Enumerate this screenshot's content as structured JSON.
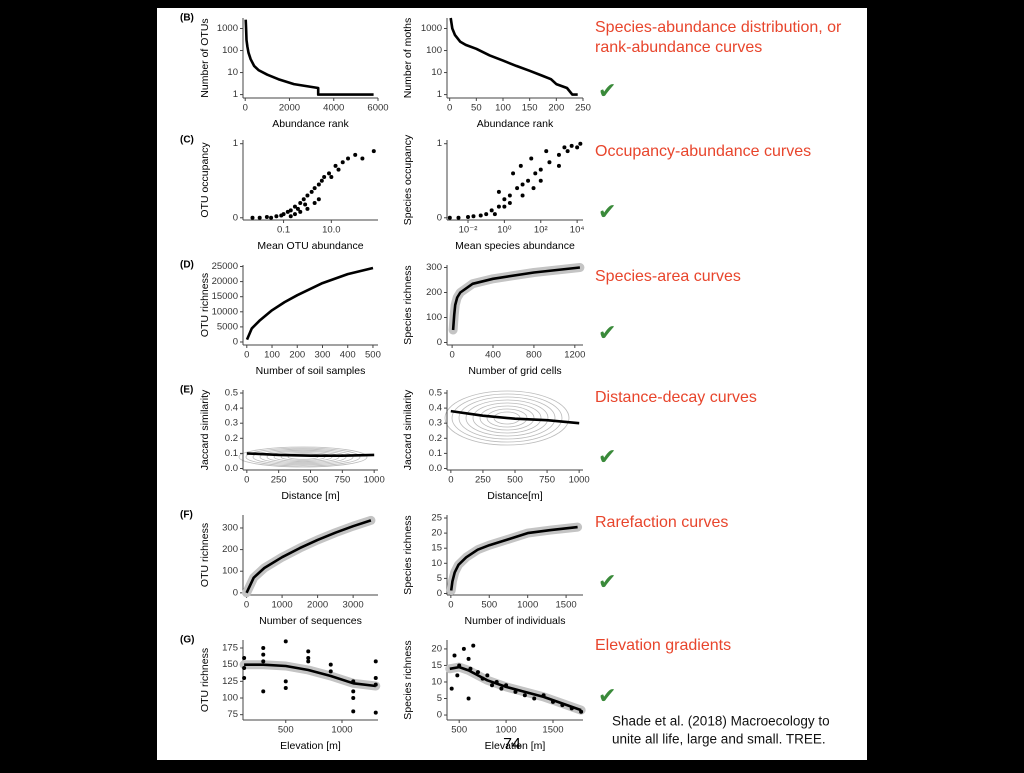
{
  "chart_data": [
    {
      "type": "line",
      "panel": "(B)",
      "x_label": "Abundance rank",
      "y_label": "Number of OTUs",
      "ylog": true,
      "color": "#000000",
      "xlim": [
        -100,
        6000
      ],
      "xticks": [
        0,
        2000,
        4000,
        6000
      ],
      "ylim": [
        0.7,
        3000
      ],
      "yticks": [
        1,
        10,
        100,
        1000
      ],
      "x": [
        20,
        40,
        60,
        100,
        150,
        250,
        400,
        600,
        1000,
        1500,
        2200,
        3300,
        3300,
        5800
      ],
      "values": [
        2500,
        1000,
        300,
        150,
        80,
        40,
        20,
        13,
        8,
        5,
        3,
        2,
        1,
        1
      ]
    },
    {
      "type": "line",
      "x_label": "Abundance rank",
      "y_label": "Number of moths",
      "ylog": true,
      "color": "#000000",
      "xlim": [
        -5,
        250
      ],
      "xticks": [
        0,
        50,
        100,
        150,
        200,
        250
      ],
      "ylim": [
        0.7,
        3000
      ],
      "yticks": [
        1,
        10,
        100,
        1000
      ],
      "x": [
        2,
        5,
        10,
        20,
        30,
        50,
        75,
        100,
        125,
        150,
        175,
        190,
        200,
        220,
        230,
        240
      ],
      "values": [
        3000,
        1000,
        500,
        250,
        180,
        120,
        60,
        35,
        20,
        12,
        7,
        5,
        3,
        2,
        1,
        1
      ]
    },
    {
      "type": "scatter",
      "panel": "(C)",
      "x_label": "Mean OTU abundance",
      "y_label": "OTU occupancy",
      "xlog": true,
      "color": "#000000",
      "xlim": [
        0.002,
        900
      ],
      "xticks": [
        0.1,
        {
          "value": 10,
          "label": "10.0"
        }
      ],
      "ylim": [
        -0.03,
        1.05
      ],
      "yticks": [
        0,
        1
      ],
      "x": [
        0.005,
        0.01,
        0.02,
        0.03,
        0.05,
        0.08,
        0.1,
        0.15,
        0.2,
        0.3,
        0.4,
        0.5,
        0.7,
        1,
        1.5,
        2,
        3,
        4,
        5,
        8,
        10,
        15,
        20,
        30,
        50,
        100,
        200,
        600,
        0.3,
        0.5,
        1,
        2,
        3,
        0.2,
        0.8
      ],
      "values": [
        0,
        0,
        0.01,
        0,
        0.02,
        0.03,
        0.05,
        0.08,
        0.1,
        0.15,
        0.12,
        0.2,
        0.25,
        0.3,
        0.35,
        0.4,
        0.45,
        0.5,
        0.55,
        0.6,
        0.55,
        0.7,
        0.65,
        0.75,
        0.8,
        0.85,
        0.8,
        0.9,
        0.05,
        0.08,
        0.12,
        0.2,
        0.25,
        0.02,
        0.18
      ]
    },
    {
      "type": "scatter",
      "x_label": "Mean species abundance",
      "y_label": "Species occupancy",
      "xlog": true,
      "color": "#000000",
      "xlim": [
        0.0007,
        21000
      ],
      "xticks": [
        {
          "value": 0.01,
          "label": "10⁻²"
        },
        {
          "value": 1,
          "label": "10⁰"
        },
        {
          "value": 100,
          "label": "10²"
        },
        {
          "value": 10000,
          "label": "10⁴"
        }
      ],
      "ylim": [
        -0.03,
        1.05
      ],
      "yticks": [
        0,
        1
      ],
      "x": [
        0.001,
        0.003,
        0.01,
        0.02,
        0.05,
        0.1,
        0.2,
        0.5,
        1,
        2,
        5,
        10,
        20,
        50,
        100,
        300,
        1000,
        3000,
        10000,
        0.3,
        1,
        3,
        10,
        30,
        100,
        1000,
        5000,
        15000,
        0.5,
        2,
        8,
        40,
        200,
        2000
      ],
      "values": [
        0,
        0,
        0.01,
        0.02,
        0.03,
        0.05,
        0.1,
        0.15,
        0.25,
        0.3,
        0.4,
        0.45,
        0.5,
        0.6,
        0.65,
        0.75,
        0.85,
        0.9,
        0.95,
        0.05,
        0.15,
        0.6,
        0.3,
        0.8,
        0.5,
        0.7,
        0.97,
        1,
        0.35,
        0.2,
        0.7,
        0.4,
        0.9,
        0.95
      ]
    },
    {
      "type": "line",
      "panel": "(D)",
      "x_label": "Number of soil samples",
      "y_label": "OTU richness",
      "color": "#000000",
      "xlim": [
        -15,
        520
      ],
      "xticks": [
        0,
        100,
        200,
        300,
        400,
        500
      ],
      "ylim": [
        -1000,
        25500
      ],
      "yticks": [
        0,
        5000,
        10000,
        15000,
        20000,
        25000
      ],
      "x": [
        1,
        20,
        50,
        100,
        150,
        200,
        300,
        400,
        500
      ],
      "values": [
        800,
        4500,
        7000,
        10500,
        13200,
        15500,
        19500,
        22500,
        24500
      ]
    },
    {
      "type": "line",
      "x_label": "Number of grid cells",
      "y_label": "Species richness",
      "band": true,
      "color": "#000000",
      "xlim": [
        -50,
        1280
      ],
      "xticks": [
        0,
        400,
        800,
        1200
      ],
      "ylim": [
        -10,
        310
      ],
      "yticks": [
        0,
        100,
        200,
        300
      ],
      "x": [
        10,
        20,
        30,
        50,
        80,
        200,
        400,
        800,
        1250
      ],
      "values": [
        50,
        110,
        150,
        180,
        200,
        235,
        255,
        280,
        300
      ]
    },
    {
      "type": "line",
      "panel": "(E)",
      "x_label": "Distance [m]",
      "y_label": "Jaccard similarity",
      "contours": true,
      "color": "#000000",
      "xlim": [
        -30,
        1030
      ],
      "xticks": [
        0,
        250,
        500,
        750,
        1000
      ],
      "ylim": [
        -0.01,
        0.52
      ],
      "yticks": [
        {
          "value": 0,
          "label": "0.0"
        },
        0.1,
        0.2,
        0.3,
        0.4,
        0.5
      ],
      "x": [
        0,
        250,
        500,
        750,
        1000
      ],
      "values": [
        0.1,
        0.09,
        0.085,
        0.085,
        0.09
      ]
    },
    {
      "type": "line",
      "x_label": "Distance[m]",
      "y_label": "Jaccard similarity",
      "contours": true,
      "color": "#000000",
      "xlim": [
        -30,
        1030
      ],
      "xticks": [
        0,
        250,
        500,
        750,
        1000
      ],
      "ylim": [
        -0.01,
        0.52
      ],
      "yticks": [
        {
          "value": 0,
          "label": "0.0"
        },
        0.1,
        0.2,
        0.3,
        0.4,
        0.5
      ],
      "x": [
        0,
        250,
        500,
        750,
        1000
      ],
      "values": [
        0.38,
        0.35,
        0.33,
        0.32,
        0.3
      ]
    },
    {
      "type": "line",
      "panel": "(F)",
      "x_label": "Number of sequences",
      "y_label": "OTU richness",
      "band": true,
      "color": "#000000",
      "xlim": [
        -100,
        3700
      ],
      "xticks": [
        0,
        1000,
        2000,
        3000
      ],
      "ylim": [
        -10,
        360
      ],
      "yticks": [
        0,
        100,
        200,
        300
      ],
      "x": [
        0,
        200,
        500,
        1000,
        1500,
        2000,
        2500,
        3000,
        3500
      ],
      "values": [
        0,
        70,
        115,
        165,
        207,
        245,
        278,
        308,
        335
      ]
    },
    {
      "type": "line",
      "x_label": "Number of individuals",
      "y_label": "Species richness",
      "band": true,
      "color": "#000000",
      "xlim": [
        -50,
        1720
      ],
      "xticks": [
        0,
        500,
        1000,
        1500
      ],
      "ylim": [
        -0.5,
        26
      ],
      "yticks": [
        0,
        5,
        10,
        15,
        20,
        25
      ],
      "x": [
        5,
        20,
        50,
        100,
        200,
        350,
        500,
        750,
        1000,
        1300,
        1650
      ],
      "values": [
        1,
        4,
        7,
        9.5,
        12,
        14.5,
        16,
        18,
        20,
        21,
        22
      ]
    },
    {
      "type": "scatter",
      "panel": "(G)",
      "x_label": "Elevation [m]",
      "y_label": "OTU richness",
      "band": true,
      "color": "#000000",
      "xlim": [
        120,
        1320
      ],
      "xticks": [
        500,
        1000
      ],
      "ylim": [
        67,
        187
      ],
      "yticks": [
        75,
        100,
        125,
        150,
        175
      ],
      "x": [
        130,
        130,
        130,
        300,
        300,
        300,
        300,
        500,
        500,
        500,
        700,
        700,
        700,
        900,
        900,
        1100,
        1100,
        1100,
        1100,
        1300,
        1300,
        1300,
        1300
      ],
      "values": [
        160,
        145,
        130,
        175,
        165,
        155,
        110,
        185,
        125,
        115,
        170,
        160,
        155,
        150,
        140,
        125,
        110,
        100,
        80,
        155,
        130,
        120,
        78
      ],
      "fit_x": [
        130,
        300,
        500,
        700,
        900,
        1100,
        1300
      ],
      "fit_values": [
        150,
        150,
        148,
        142,
        133,
        122,
        118
      ]
    },
    {
      "type": "scatter",
      "x_label": "Elevation [m]",
      "y_label": "Species richness",
      "band": true,
      "color": "#000000",
      "xlim": [
        370,
        1820
      ],
      "xticks": [
        500,
        1000,
        1500
      ],
      "ylim": [
        -1.5,
        22.7
      ],
      "yticks": [
        0,
        5,
        10,
        15,
        20
      ],
      "x": [
        450,
        480,
        500,
        550,
        600,
        620,
        650,
        700,
        750,
        800,
        850,
        900,
        950,
        1000,
        1100,
        1200,
        1300,
        1400,
        1500,
        1600,
        1700,
        1800,
        420,
        600
      ],
      "values": [
        18,
        12,
        15,
        20,
        17,
        14,
        21,
        13,
        11,
        12,
        9,
        10,
        8,
        9,
        7,
        6,
        5,
        6,
        4,
        3,
        2,
        1,
        8,
        5
      ],
      "fit_x": [
        400,
        500,
        600,
        700,
        800,
        1000,
        1200,
        1400,
        1600,
        1800
      ],
      "fit_values": [
        14,
        14.5,
        13.5,
        12,
        10.5,
        8.5,
        7,
        5.5,
        3.5,
        1.5
      ]
    }
  ],
  "slide": {
    "labels": [
      [
        "Species-abundance distribution, or",
        "rank-abundance curves"
      ],
      [
        "Occupancy-abundance curves"
      ],
      [
        "Species-area curves"
      ],
      [
        "Distance-decay curves"
      ],
      [
        "Rarefaction curves"
      ],
      [
        "Elevation gradients"
      ]
    ],
    "checks": [
      "✔",
      "✔",
      "✔",
      "✔",
      "✔",
      "✔"
    ],
    "citation": [
      "Shade et al. (2018) Macroecology to",
      "unite all life, large and small. TREE."
    ],
    "page_number": "74"
  }
}
